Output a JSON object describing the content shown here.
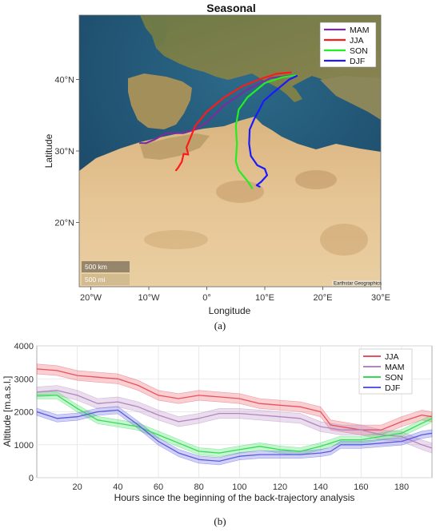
{
  "chart_data": [
    {
      "type": "map",
      "title": "Seasonal",
      "xlabel": "Longitude",
      "ylabel": "Latitude",
      "xlim": [
        -22,
        30
      ],
      "ylim": [
        11,
        49
      ],
      "x_ticks": [
        -20,
        -10,
        0,
        10,
        20,
        30
      ],
      "x_tick_labels": [
        "20°W",
        "10°W",
        "0°",
        "10°E",
        "20°E",
        "30°E"
      ],
      "y_ticks": [
        20,
        30,
        40
      ],
      "y_tick_labels": [
        "20°N",
        "30°N",
        "40°N"
      ],
      "legend": "top-right",
      "scale_bar": [
        "500 km",
        "500 mi"
      ],
      "credit": "Earthstar Geographics",
      "series": [
        {
          "name": "MAM",
          "color": "#7a2d9e",
          "points": [
            [
              15,
              40.6
            ],
            [
              11,
              40.2
            ],
            [
              7,
              38.6
            ],
            [
              3,
              36.4
            ],
            [
              0,
              34
            ],
            [
              -2,
              33
            ],
            [
              -4,
              32.5
            ],
            [
              -7,
              32.5
            ],
            [
              -9,
              31.6
            ],
            [
              -10.5,
              31.1
            ],
            [
              -11.5,
              31.1
            ]
          ]
        },
        {
          "name": "JJA",
          "color": "#ff1a1a",
          "points": [
            [
              14.5,
              41
            ],
            [
              12,
              40.8
            ],
            [
              9,
              40
            ],
            [
              6,
              39
            ],
            [
              3,
              37.5
            ],
            [
              0,
              35.5
            ],
            [
              -2,
              33.5
            ],
            [
              -3,
              31.5
            ],
            [
              -3.5,
              30.5
            ],
            [
              -3.2,
              29.5
            ],
            [
              -4,
              29.6
            ],
            [
              -4.3,
              28.5
            ],
            [
              -5,
              27.6
            ],
            [
              -5.3,
              27.3
            ]
          ]
        },
        {
          "name": "SON",
          "color": "#22ee22",
          "points": [
            [
              15.2,
              40.6
            ],
            [
              13,
              40.3
            ],
            [
              10,
              39.5
            ],
            [
              7,
              37.5
            ],
            [
              5.5,
              35.8
            ],
            [
              5,
              33.5
            ],
            [
              5.2,
              31
            ],
            [
              5,
              28.5
            ],
            [
              5.5,
              27.3
            ],
            [
              6.5,
              26.3
            ],
            [
              7.2,
              25.6
            ],
            [
              7.8,
              24.8
            ]
          ]
        },
        {
          "name": "DJF",
          "color": "#1a1aff",
          "points": [
            [
              15.5,
              40.5
            ],
            [
              14.2,
              40
            ],
            [
              11.5,
              38.2
            ],
            [
              9.8,
              37
            ],
            [
              9.2,
              36
            ],
            [
              8.2,
              34.5
            ],
            [
              7.4,
              33
            ],
            [
              7.3,
              31
            ],
            [
              7.6,
              29.3
            ],
            [
              8.7,
              28
            ],
            [
              10,
              27.5
            ],
            [
              10.4,
              26.6
            ],
            [
              9.4,
              25.7
            ],
            [
              8.6,
              25.2
            ],
            [
              9.1,
              25
            ]
          ]
        }
      ]
    },
    {
      "type": "line",
      "xlabel": "Hours since the beginning of the back-trajectory analysis",
      "ylabel": "Altitude [m.a.s.l.]",
      "xlim": [
        0,
        195
      ],
      "ylim": [
        0,
        4000
      ],
      "x_ticks": [
        20,
        40,
        60,
        80,
        100,
        120,
        140,
        160,
        180
      ],
      "y_ticks": [
        0,
        1000,
        2000,
        3000,
        4000
      ],
      "grid": true,
      "legend": "top-right",
      "x": [
        0,
        10,
        20,
        30,
        40,
        50,
        60,
        70,
        80,
        90,
        100,
        110,
        120,
        130,
        140,
        145,
        150,
        160,
        170,
        180,
        190,
        195
      ],
      "series": [
        {
          "name": "JJA",
          "color": "#e8515e",
          "values": [
            3300,
            3250,
            3100,
            3050,
            3000,
            2800,
            2500,
            2400,
            2500,
            2450,
            2400,
            2250,
            2200,
            2150,
            2000,
            1600,
            1550,
            1450,
            1450,
            1700,
            1900,
            1850
          ]
        },
        {
          "name": "MAM",
          "color": "#b484c0",
          "values": [
            2600,
            2650,
            2500,
            2250,
            2300,
            2150,
            1900,
            1700,
            1800,
            1950,
            1950,
            1900,
            1850,
            1800,
            1550,
            1500,
            1450,
            1450,
            1300,
            1250,
            1000,
            900
          ]
        },
        {
          "name": "SON",
          "color": "#33dd55",
          "values": [
            2500,
            2500,
            2100,
            1750,
            1650,
            1550,
            1300,
            1050,
            800,
            750,
            850,
            950,
            850,
            800,
            950,
            1050,
            1150,
            1150,
            1250,
            1350,
            1650,
            1800
          ]
        },
        {
          "name": "DJF",
          "color": "#5a5ae0",
          "values": [
            2000,
            1800,
            1850,
            2000,
            2050,
            1600,
            1100,
            750,
            550,
            500,
            650,
            700,
            700,
            700,
            750,
            800,
            1000,
            1000,
            1050,
            1100,
            1300,
            1350
          ]
        }
      ],
      "bands": {
        "JJA": 150,
        "MAM": 150,
        "SON": 110,
        "DJF": 110
      }
    }
  ],
  "captions": {
    "a": "(a)",
    "b": "(b)"
  }
}
